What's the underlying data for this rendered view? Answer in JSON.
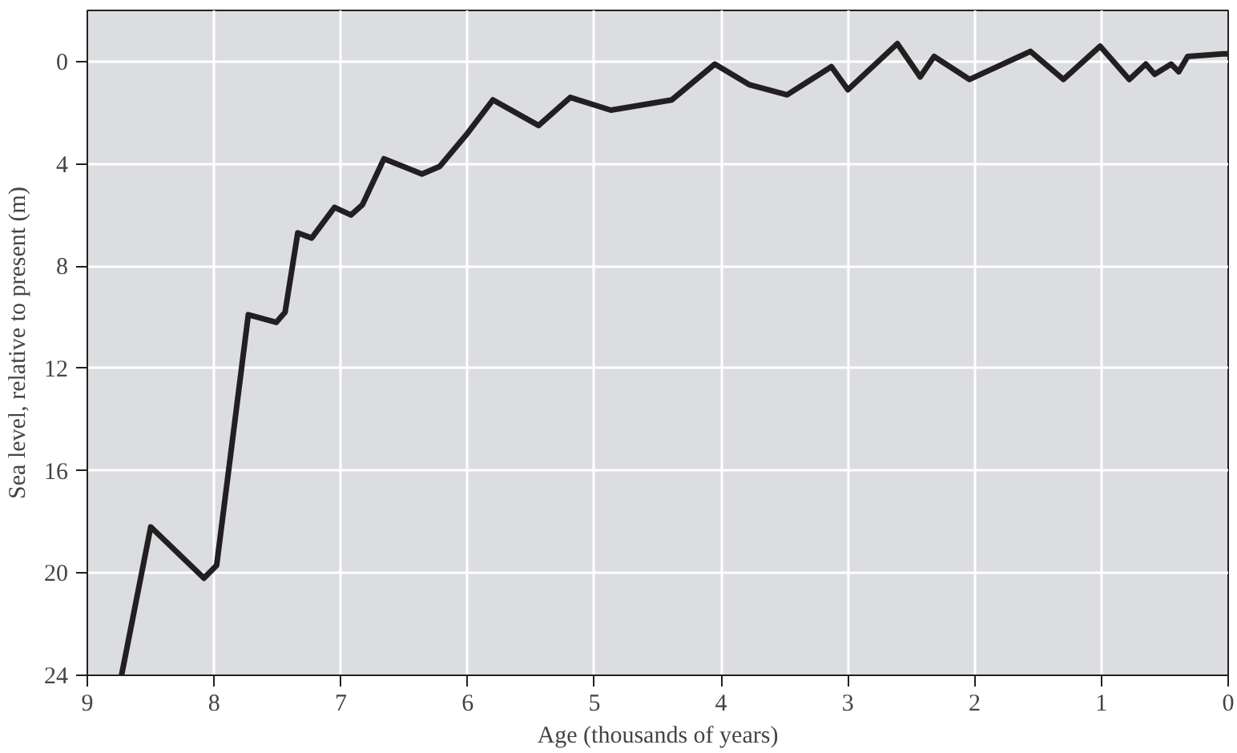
{
  "chart_data": {
    "type": "line",
    "xlabel": "Age (thousands of years)",
    "ylabel": "Sea level, relative to present (m)",
    "xlim": [
      9,
      0
    ],
    "ylim": [
      24,
      -2
    ],
    "xticks": [
      9,
      8,
      7,
      6,
      5,
      4,
      3,
      2,
      1,
      0
    ],
    "yticks": [
      0,
      4,
      8,
      12,
      16,
      20,
      24
    ],
    "grid": true,
    "x": [
      8.73,
      8.5,
      8.08,
      7.98,
      7.73,
      7.51,
      7.44,
      7.34,
      7.23,
      7.05,
      6.92,
      6.83,
      6.66,
      6.36,
      6.22,
      6.0,
      5.8,
      5.44,
      5.19,
      4.87,
      4.39,
      4.05,
      3.78,
      3.48,
      3.13,
      3.0,
      2.61,
      2.43,
      2.32,
      2.04,
      1.56,
      1.3,
      1.01,
      0.78,
      0.65,
      0.58,
      0.45,
      0.39,
      0.32,
      0.04,
      0.0
    ],
    "series": [
      {
        "color": "#231f20",
        "values": [
          24.0,
          18.2,
          20.2,
          19.7,
          9.9,
          10.2,
          9.8,
          6.7,
          6.9,
          5.7,
          6.0,
          5.6,
          3.8,
          4.4,
          4.1,
          2.8,
          1.5,
          2.5,
          1.4,
          1.9,
          1.5,
          0.1,
          0.9,
          1.3,
          0.2,
          1.1,
          -0.7,
          0.6,
          -0.2,
          0.7,
          -0.4,
          0.7,
          -0.6,
          0.7,
          0.1,
          0.5,
          0.1,
          0.4,
          -0.2,
          -0.3,
          -0.3
        ]
      }
    ]
  }
}
